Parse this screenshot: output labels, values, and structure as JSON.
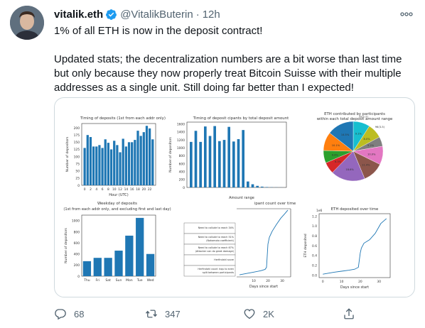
{
  "author": {
    "name": "vitalik.eth",
    "handle": "@VitalikButerin",
    "time": "12h",
    "verified": true,
    "avatar_icon": "user-avatar-photo"
  },
  "tweet": {
    "text": "1% of all ETH is now in the deposit contract!\n\nUpdated stats; the decentralization numbers are a bit worse than last time but only because they now properly treat Bitcoin Suisse with their multiple addresses as a single unit. Still doing far better than I expected!"
  },
  "actions": {
    "reply_count": "68",
    "retweet_count": "347",
    "like_count": "2K"
  },
  "colors": {
    "bar": "#1f77b4",
    "line": "#1f77b4",
    "text_secondary": "#536471",
    "verified": "#1d9bf0"
  },
  "chart_data": [
    {
      "type": "bar",
      "title": "Timing of deposits (1st from each addr only)",
      "xlabel": "Hour (UTC)",
      "ylabel": "Number of depositors",
      "x_ticks": [
        "0",
        "2",
        "4",
        "6",
        "8",
        "10",
        "12",
        "14",
        "16",
        "18",
        "20",
        "22"
      ],
      "y_ticks": [
        "0",
        "25",
        "50",
        "75",
        "100",
        "125",
        "150",
        "175",
        "200"
      ],
      "ylim": [
        0,
        215
      ],
      "values": [
        130,
        175,
        168,
        135,
        135,
        140,
        130,
        160,
        148,
        125,
        155,
        140,
        115,
        162,
        135,
        150,
        150,
        158,
        190,
        172,
        185,
        207,
        198,
        160
      ]
    },
    {
      "type": "bar",
      "title": "Timing of deposit    cipants by total deposit amount",
      "xlabel": "Amount range",
      "ylabel": "Number of depositors",
      "y_ticks": [
        "0",
        "200",
        "400",
        "600",
        "800",
        "1000",
        "1200",
        "1400",
        "1600"
      ],
      "ylim": [
        0,
        1650
      ],
      "values": [
        1150,
        1430,
        1150,
        1540,
        1300,
        1550,
        1170,
        1200,
        1530,
        1160,
        1220,
        1450,
        150,
        80,
        40,
        20,
        10,
        5,
        3,
        2
      ]
    },
    {
      "type": "pie",
      "title": "ETH contributed by participants\nwithin each total deposit amount range",
      "slices": [
        {
          "label": "32(1-2)",
          "value": 9.1,
          "color": "#17becf"
        },
        {
          "label": "96(3-5)",
          "value": 8.0,
          "color": "#bcbd22"
        },
        {
          "label": "",
          "value": 5.2,
          "color": "#7f7f7f"
        },
        {
          "label": "",
          "value": 10.0,
          "color": "#e377c2"
        },
        {
          "label": "",
          "value": 11.4,
          "color": "#8c564b"
        },
        {
          "label": "",
          "value": 18.6,
          "color": "#9467bd"
        },
        {
          "label": "",
          "value": 6.3,
          "color": "#d62728"
        },
        {
          "label": "",
          "value": 6.8,
          "color": "#2ca02c"
        },
        {
          "label": "",
          "value": 10.1,
          "color": "#ff7f0e"
        },
        {
          "label": "",
          "value": 14.5,
          "color": "#1f77b4"
        }
      ]
    },
    {
      "type": "bar",
      "title": "Weekday of deposits\n(1st from each addr only, and excluding first and last day)",
      "ylabel": "Number of depositors",
      "categories": [
        "Thu",
        "Fri",
        "Sat",
        "Sun",
        "Mon",
        "Tue",
        "Wed"
      ],
      "values": [
        270,
        330,
        330,
        460,
        730,
        1050,
        400
      ],
      "y_ticks": [
        "0",
        "200",
        "400",
        "600",
        "800",
        "1000"
      ],
      "ylim": [
        0,
        1100
      ]
    },
    {
      "type": "table",
      "title": "ipant count over time",
      "rows": [
        "Need to collude to reach 34%",
        "Need to collude to reach 51%\n(Nakamoto coefficient)",
        "Need to collude to reach 67%\n(Attacker can do great damage)",
        "Herfindahl score",
        "Herfindahl count inqu to even\nsplit between    participants"
      ]
    },
    {
      "type": "line",
      "xlabel": "Days since start",
      "x_ticks": [
        "10",
        "20",
        "30"
      ],
      "x": [
        0,
        5,
        10,
        15,
        18,
        19,
        20,
        21,
        23,
        26,
        29,
        32,
        34
      ],
      "y": [
        0.03,
        0.05,
        0.07,
        0.09,
        0.11,
        0.14,
        0.48,
        0.58,
        0.67,
        0.77,
        0.86,
        0.93,
        0.98
      ]
    },
    {
      "type": "line",
      "title": "ETH deposited over time",
      "exponent_label": "1e6",
      "xlabel": "Days since start",
      "ylabel": "ETH deposited",
      "x_ticks": [
        "0",
        "10",
        "20",
        "30"
      ],
      "y_ticks": [
        "0.0",
        "0.2",
        "0.4",
        "0.6",
        "0.8",
        "1.0",
        "1.2"
      ],
      "xlim": [
        -2,
        36
      ],
      "ylim": [
        -0.05,
        1.25
      ],
      "x": [
        0,
        3,
        6,
        10,
        14,
        17,
        19,
        20,
        20.6,
        22,
        25,
        28,
        31,
        34
      ],
      "y": [
        0.02,
        0.04,
        0.06,
        0.08,
        0.1,
        0.12,
        0.16,
        0.45,
        0.55,
        0.65,
        0.72,
        0.85,
        1.05,
        1.15
      ]
    }
  ]
}
